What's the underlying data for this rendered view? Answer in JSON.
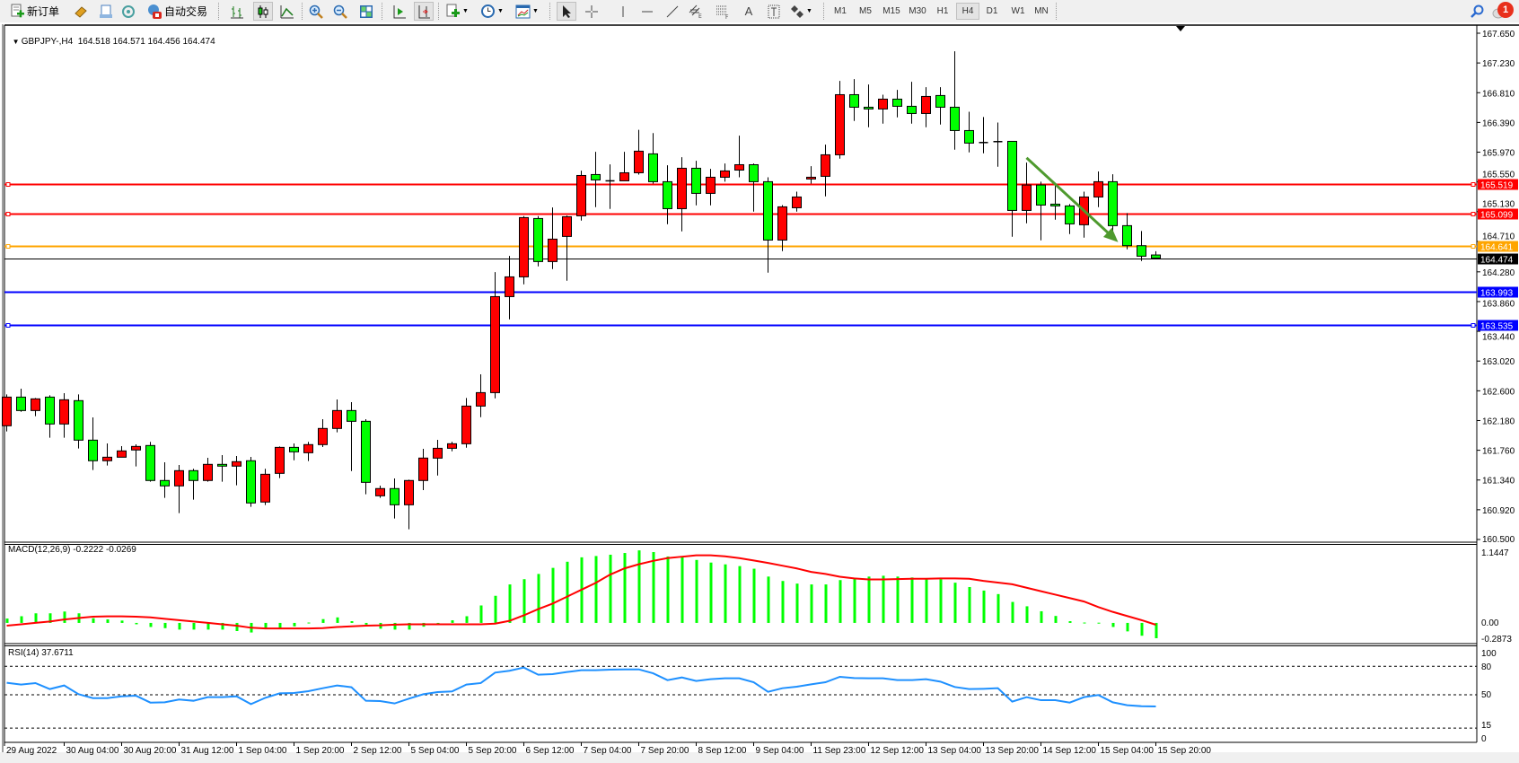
{
  "toolbar": {
    "new_order_label": "新订单",
    "autotrading_label": "自动交易",
    "icons": [
      "new-order-icon",
      "market-watch-icon",
      "data-window-icon",
      "signals-icon",
      "autotrading-icon",
      "bar-chart-icon",
      "candlestick-icon",
      "line-chart-icon",
      "zoom-in-icon",
      "zoom-out-icon",
      "tile-windows-icon",
      "auto-scroll-icon",
      "chart-shift-icon",
      "indicators-icon",
      "periods-icon",
      "templates-icon",
      "cursor-icon",
      "crosshair-icon",
      "vertical-line-icon",
      "horizontal-line-icon",
      "trendline-icon",
      "equidistant-channel-icon",
      "fibonacci-icon",
      "text-icon",
      "text-label-icon",
      "arrows-icon",
      "search-icon",
      "notifications-icon"
    ],
    "text_tool_label": "A",
    "timeframes": [
      "M1",
      "M5",
      "M15",
      "M30",
      "H1",
      "H4",
      "D1",
      "W1",
      "MN"
    ],
    "active_timeframe": "H4",
    "notification_count": "1"
  },
  "chart_header": {
    "symbol_period": "GBPJPY-,H4",
    "ohlc_text": "164.518 164.571 164.456 164.474"
  },
  "chart_data": {
    "type": "candlestick",
    "symbol": "GBPJPY-",
    "period": "H4",
    "up_color": "#ff0000",
    "down_color": "#00ff00",
    "price_axis": {
      "min": 160.5,
      "max": 167.65,
      "ticks": [
        "167.650",
        "167.230",
        "166.810",
        "166.390",
        "165.970",
        "165.550",
        "165.130",
        "164.710",
        "164.280",
        "163.860",
        "163.440",
        "163.020",
        "162.600",
        "162.180",
        "161.760",
        "161.340",
        "160.920",
        "160.500"
      ]
    },
    "fields": [
      "open",
      "high",
      "low",
      "close"
    ],
    "candles": [
      [
        162.106,
        162.549,
        162.026,
        162.511
      ],
      [
        162.511,
        162.63,
        162.304,
        162.321
      ],
      [
        162.321,
        162.498,
        162.241,
        162.486
      ],
      [
        162.511,
        162.537,
        161.937,
        162.131
      ],
      [
        162.131,
        162.566,
        161.937,
        162.473
      ],
      [
        162.461,
        162.549,
        161.785,
        161.903
      ],
      [
        161.903,
        162.224,
        161.481,
        161.612
      ],
      [
        161.612,
        161.857,
        161.544,
        161.662
      ],
      [
        161.662,
        161.818,
        161.662,
        161.751
      ],
      [
        161.764,
        161.844,
        161.531,
        161.814
      ],
      [
        161.827,
        161.878,
        161.316,
        161.333
      ],
      [
        161.333,
        161.59,
        161.088,
        161.257
      ],
      [
        161.257,
        161.552,
        160.872,
        161.472
      ],
      [
        161.472,
        161.498,
        161.062,
        161.333
      ],
      [
        161.333,
        161.654,
        161.316,
        161.561
      ],
      [
        161.561,
        161.692,
        161.316,
        161.536
      ],
      [
        161.536,
        161.679,
        161.265,
        161.599
      ],
      [
        161.612,
        161.667,
        160.961,
        161.016
      ],
      [
        161.029,
        161.498,
        160.986,
        161.421
      ],
      [
        161.434,
        161.814,
        161.367,
        161.801
      ],
      [
        161.801,
        161.857,
        161.619,
        161.738
      ],
      [
        161.725,
        161.878,
        161.607,
        161.84
      ],
      [
        161.84,
        162.198,
        161.806,
        162.068
      ],
      [
        162.068,
        162.477,
        162.013,
        162.321
      ],
      [
        162.321,
        162.439,
        161.467,
        162.169
      ],
      [
        162.169,
        162.198,
        161.138,
        161.307
      ],
      [
        161.117,
        161.261,
        161.088,
        161.219
      ],
      [
        161.219,
        161.362,
        160.796,
        160.99
      ],
      [
        160.99,
        161.344,
        160.644,
        161.333
      ],
      [
        161.333,
        161.78,
        161.197,
        161.65
      ],
      [
        161.649,
        161.907,
        161.404,
        161.788
      ],
      [
        161.788,
        161.881,
        161.746,
        161.852
      ],
      [
        161.852,
        162.498,
        161.797,
        162.384
      ],
      [
        162.384,
        162.832,
        162.228,
        162.574
      ],
      [
        162.574,
        164.277,
        162.494,
        163.93
      ],
      [
        163.93,
        164.505,
        163.609,
        164.209
      ],
      [
        164.209,
        165.067,
        164.104,
        165.046
      ],
      [
        165.033,
        165.067,
        164.357,
        164.425
      ],
      [
        164.425,
        165.189,
        164.319,
        164.742
      ],
      [
        164.78,
        165.075,
        164.154,
        165.058
      ],
      [
        165.071,
        165.709,
        165.004,
        165.641
      ],
      [
        165.654,
        165.975,
        165.194,
        165.578
      ],
      [
        165.565,
        165.798,
        165.168,
        165.56
      ],
      [
        165.565,
        165.975,
        165.565,
        165.679
      ],
      [
        165.679,
        166.285,
        165.654,
        165.984
      ],
      [
        165.946,
        166.24,
        165.527,
        165.553
      ],
      [
        165.553,
        165.785,
        164.953,
        165.172
      ],
      [
        165.172,
        165.899,
        164.852,
        165.743
      ],
      [
        165.743,
        165.848,
        165.219,
        165.388
      ],
      [
        165.388,
        165.734,
        165.219,
        165.616
      ],
      [
        165.616,
        165.81,
        165.553,
        165.705
      ],
      [
        165.717,
        166.203,
        165.616,
        165.793
      ],
      [
        165.793,
        165.81,
        165.13,
        165.553
      ],
      [
        165.553,
        165.616,
        164.268,
        164.729
      ],
      [
        164.729,
        165.223,
        164.573,
        165.198
      ],
      [
        165.185,
        165.413,
        165.13,
        165.337
      ],
      [
        165.591,
        165.772,
        165.527,
        165.616
      ],
      [
        165.629,
        166.077,
        165.346,
        165.933
      ],
      [
        165.933,
        166.977,
        165.878,
        166.782
      ],
      [
        166.782,
        167.002,
        166.411,
        166.605
      ],
      [
        166.605,
        166.926,
        166.322,
        166.58
      ],
      [
        166.58,
        166.782,
        166.373,
        166.719
      ],
      [
        166.719,
        166.85,
        166.461,
        166.618
      ],
      [
        166.618,
        166.964,
        166.373,
        166.516
      ],
      [
        166.516,
        166.888,
        166.322,
        166.757
      ],
      [
        166.77,
        166.888,
        166.36,
        166.605
      ],
      [
        166.605,
        167.395,
        166.005,
        166.275
      ],
      [
        166.275,
        166.541,
        165.967,
        166.098
      ],
      [
        166.106,
        166.466,
        165.954,
        166.106
      ],
      [
        166.119,
        166.389,
        165.764,
        166.119
      ],
      [
        166.123,
        166.123,
        164.776,
        165.147
      ],
      [
        165.147,
        165.823,
        164.966,
        165.506
      ],
      [
        165.506,
        165.553,
        164.725,
        165.223
      ],
      [
        165.236,
        165.498,
        165.016,
        165.211
      ],
      [
        165.211,
        165.236,
        164.814,
        164.957
      ],
      [
        164.945,
        165.413,
        164.763,
        165.337
      ],
      [
        165.337,
        165.697,
        165.194,
        165.553
      ],
      [
        165.553,
        165.658,
        164.763,
        164.932
      ],
      [
        164.932,
        165.109,
        164.598,
        164.649
      ],
      [
        164.649,
        164.856,
        164.433,
        164.501
      ],
      [
        164.518,
        164.571,
        164.456,
        164.474
      ]
    ],
    "horizontal_lines": [
      {
        "price": "165.519",
        "color": "#ff0000"
      },
      {
        "price": "165.099",
        "color": "#ff0000"
      },
      {
        "price": "164.641",
        "color": "#ffa500"
      },
      {
        "price": "164.474",
        "color": "#000000",
        "bid": true
      },
      {
        "price": "163.993",
        "color": "#0000ff"
      },
      {
        "price": "163.535",
        "color": "#0000ff"
      }
    ],
    "arrow": {
      "color": "#4e9a2e",
      "from": {
        "bar": 72,
        "price": 165.89
      },
      "to": {
        "bar": 77,
        "price": 164.7
      }
    },
    "time_labels": [
      {
        "bar": 1,
        "text": "29 Aug 2022"
      },
      {
        "bar": 5,
        "text": "30 Aug 04:00"
      },
      {
        "bar": 9,
        "text": "30 Aug 20:00"
      },
      {
        "bar": 13,
        "text": "31 Aug 12:00"
      },
      {
        "bar": 17,
        "text": "1 Sep 04:00"
      },
      {
        "bar": 21,
        "text": "1 Sep 20:00"
      },
      {
        "bar": 25,
        "text": "2 Sep 12:00"
      },
      {
        "bar": 29,
        "text": "5 Sep 04:00"
      },
      {
        "bar": 33,
        "text": "5 Sep 20:00"
      },
      {
        "bar": 37,
        "text": "6 Sep 12:00"
      },
      {
        "bar": 41,
        "text": "7 Sep 04:00"
      },
      {
        "bar": 45,
        "text": "7 Sep 20:00"
      },
      {
        "bar": 49,
        "text": "8 Sep 12:00"
      },
      {
        "bar": 53,
        "text": "9 Sep 04:00"
      },
      {
        "bar": 57,
        "text": "11 Sep 23:00"
      },
      {
        "bar": 61,
        "text": "12 Sep 12:00"
      },
      {
        "bar": 65,
        "text": "13 Sep 04:00"
      },
      {
        "bar": 69,
        "text": "13 Sep 20:00"
      },
      {
        "bar": 73,
        "text": "14 Sep 12:00"
      },
      {
        "bar": 77,
        "text": "15 Sep 04:00"
      },
      {
        "bar": 81,
        "text": "15 Sep 20:00"
      }
    ],
    "macd": {
      "label": "MACD(12,26,9) -0.2222 -0.0269",
      "axis": {
        "min": -0.2873,
        "max": 1.1447,
        "labels": [
          "1.1447",
          "0.00",
          "-0.2873"
        ]
      },
      "histogram_color": "#00ff00",
      "signal_color": "#ff0000",
      "histogram": [
        0.063,
        0.097,
        0.139,
        0.139,
        0.165,
        0.139,
        0.068,
        0.051,
        0.034,
        -0.02,
        -0.059,
        -0.076,
        -0.097,
        -0.097,
        -0.097,
        -0.097,
        -0.118,
        -0.139,
        -0.076,
        -0.076,
        -0.05,
        0.005,
        0.055,
        0.08,
        0.025,
        -0.025,
        -0.084,
        -0.097,
        -0.097,
        -0.055,
        -0.013,
        0.038,
        0.097,
        0.253,
        0.393,
        0.558,
        0.634,
        0.71,
        0.798,
        0.887,
        0.951,
        0.97,
        0.989,
        1.014,
        1.052,
        1.027,
        0.963,
        0.951,
        0.913,
        0.875,
        0.849,
        0.824,
        0.786,
        0.672,
        0.608,
        0.57,
        0.558,
        0.558,
        0.621,
        0.646,
        0.672,
        0.684,
        0.672,
        0.659,
        0.634,
        0.634,
        0.583,
        0.52,
        0.469,
        0.418,
        0.304,
        0.241,
        0.169,
        0.101,
        0.025,
        0.005,
        0.003,
        -0.059,
        -0.123,
        -0.186,
        -0.222
      ],
      "signal": [
        -0.04,
        -0.02,
        0,
        0.02,
        0.05,
        0.07,
        0.09,
        0.095,
        0.095,
        0.09,
        0.08,
        0.06,
        0.04,
        0.02,
        0,
        -0.02,
        -0.04,
        -0.07,
        -0.08,
        -0.08,
        -0.08,
        -0.08,
        -0.075,
        -0.06,
        -0.05,
        -0.04,
        -0.035,
        -0.025,
        -0.02,
        -0.02,
        -0.02,
        -0.02,
        -0.02,
        -0.02,
        -0.01,
        0.03,
        0.11,
        0.2,
        0.28,
        0.38,
        0.48,
        0.58,
        0.7,
        0.79,
        0.85,
        0.9,
        0.94,
        0.96,
        0.98,
        0.98,
        0.965,
        0.94,
        0.905,
        0.87,
        0.83,
        0.79,
        0.74,
        0.71,
        0.67,
        0.645,
        0.63,
        0.63,
        0.635,
        0.64,
        0.64,
        0.645,
        0.645,
        0.64,
        0.61,
        0.585,
        0.56,
        0.51,
        0.46,
        0.41,
        0.36,
        0.31,
        0.23,
        0.16,
        0.1,
        0.04,
        -0.027
      ]
    },
    "rsi": {
      "label": "RSI(14) 37.6711",
      "color": "#1e90ff",
      "axis": {
        "min": 0,
        "max": 100,
        "labels": [
          "100",
          "80",
          "50",
          "15",
          "0"
        ]
      },
      "levels": [
        80,
        50,
        15
      ],
      "values": [
        62.6,
        60.7,
        62.3,
        56,
        59.8,
        50.6,
        46.5,
        46.5,
        48.4,
        49,
        41.8,
        42.1,
        45,
        43.7,
        47.5,
        47.5,
        48.4,
        40.2,
        46.8,
        51.5,
        51.9,
        53.8,
        56.9,
        59.8,
        57.9,
        43.7,
        43.4,
        40.9,
        45.9,
        50.6,
        52.8,
        53.5,
        60.7,
        62.3,
        73.3,
        75.2,
        78.6,
        71.1,
        71.7,
        73.9,
        75.8,
        75.8,
        76.4,
        76.7,
        76.7,
        72.6,
        65.4,
        68.2,
        64.5,
        66.4,
        67.3,
        67.3,
        63.2,
        53.1,
        56.9,
        58.5,
        61,
        63.2,
        68.9,
        67.6,
        67.3,
        67.3,
        65.4,
        65.4,
        66.4,
        63.8,
        58.2,
        56,
        56.3,
        56.9,
        42.8,
        47.5,
        44.3,
        44.3,
        41.8,
        47.5,
        49.7,
        42.1,
        39,
        38,
        37.7
      ]
    }
  }
}
